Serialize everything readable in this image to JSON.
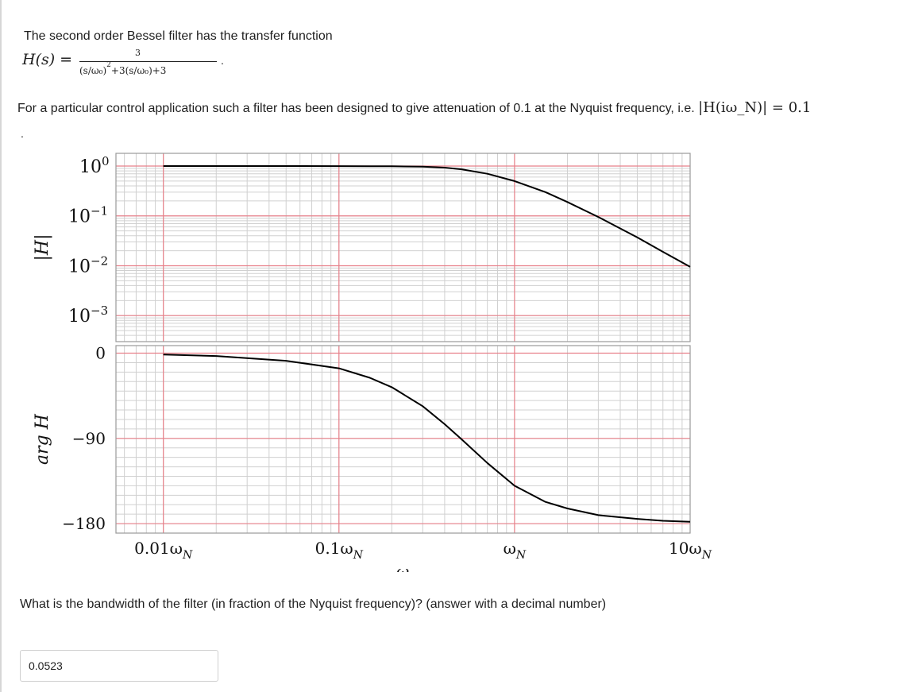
{
  "question": {
    "intro": "The second order Bessel filter has the transfer function",
    "formula": {
      "lhs": "H(s) =",
      "numerator": "3",
      "denominator_term1": "(s/ω₀)",
      "denominator_exp": "2",
      "denominator_rest": "+3(s/ω₀)+3",
      "period": "."
    },
    "description": "For a particular control application such a filter has been designed to give attenuation of 0.1 at the Nyquist frequency, i.e.",
    "condition": "|H(iω_N)| = 0.1",
    "stray_period": ".",
    "prompt": "What is the bandwidth of the filter (in fraction of the Nyquist frequency)? (answer with a decimal number)"
  },
  "answer": {
    "value": "0.0523"
  },
  "chart_data": {
    "type": "line",
    "x_scale": "log",
    "x_range_decades_wN": [
      -2.27,
      1.0
    ],
    "xlabel": "ω",
    "x_ticks": [
      {
        "value": 0.01,
        "label": "0.01ω_N"
      },
      {
        "value": 0.1,
        "label": "0.1ω_N"
      },
      {
        "value": 1,
        "label": "ω_N"
      },
      {
        "value": 10,
        "label": "10ω_N"
      }
    ],
    "panels": [
      {
        "name": "magnitude",
        "ylabel": "|H|",
        "y_scale": "log",
        "y_range": [
          0.0003,
          1.8
        ],
        "y_ticks": [
          {
            "value": 1,
            "base": "10",
            "exp": "0"
          },
          {
            "value": 0.1,
            "base": "10",
            "exp": "−1"
          },
          {
            "value": 0.01,
            "base": "10",
            "exp": "−2"
          },
          {
            "value": 0.001,
            "base": "10",
            "exp": "−3"
          }
        ],
        "series": [
          {
            "x": [
              0.01,
              0.02,
              0.05,
              0.1,
              0.15,
              0.2,
              0.3,
              0.4,
              0.5,
              0.7,
              1.0,
              1.5,
              2.0,
              3.0,
              5.0,
              7.0,
              10.0
            ],
            "y": [
              1.0,
              1.0,
              0.999,
              0.997,
              0.994,
              0.99,
              0.971,
              0.93,
              0.86,
              0.7,
              0.5,
              0.3,
              0.19,
              0.095,
              0.037,
              0.019,
              0.0095
            ]
          }
        ],
        "highlight_lines": [
          1,
          0.1,
          0.01,
          0.001
        ]
      },
      {
        "name": "phase",
        "ylabel": "arg H",
        "y_scale": "linear",
        "y_range": [
          -190,
          8
        ],
        "y_ticks": [
          {
            "value": 0,
            "label": "0"
          },
          {
            "value": -90,
            "label": "−90"
          },
          {
            "value": -180,
            "label": "−180"
          }
        ],
        "series": [
          {
            "x": [
              0.01,
              0.02,
              0.05,
              0.1,
              0.15,
              0.2,
              0.3,
              0.4,
              0.5,
              0.7,
              1.0,
              1.5,
              2.0,
              3.0,
              5.0,
              7.0,
              10.0
            ],
            "y": [
              -1.5,
              -3,
              -8,
              -16,
              -26,
              -36,
              -56,
              -75,
              -91,
              -116,
              -140,
              -157,
              -164,
              -171,
              -175,
              -177,
              -178
            ]
          }
        ],
        "highlight_lines": [
          0,
          -90,
          -180
        ]
      }
    ],
    "highlight_x": [
      0.01,
      0.1,
      1.0
    ],
    "grid": true,
    "colors": {
      "curve": "#000000",
      "highlight": "#e8808a",
      "grid_minor": "#d0d0d0",
      "frame": "#9a9a9a"
    }
  }
}
